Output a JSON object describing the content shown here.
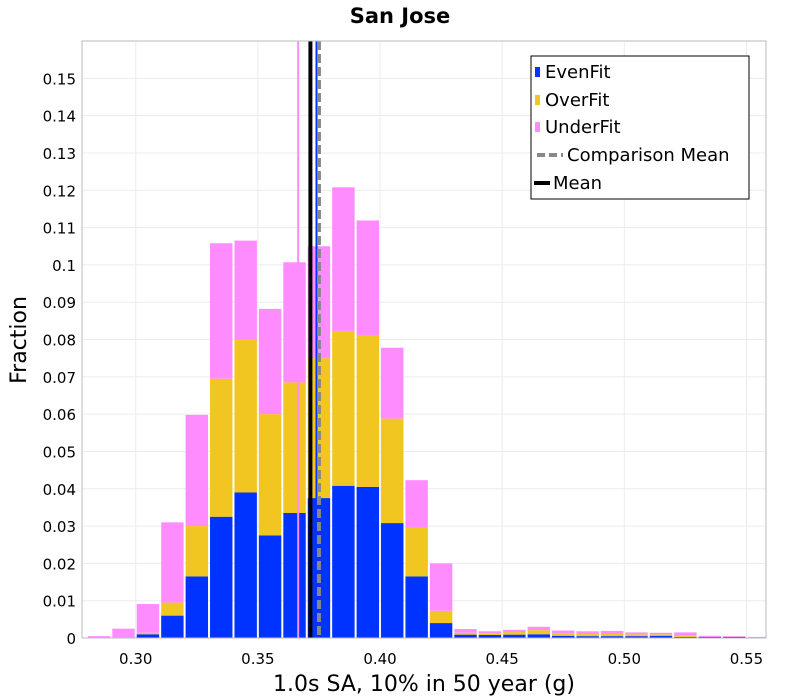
{
  "chart_data": {
    "type": "bar",
    "stacked": true,
    "title": "San Jose",
    "xlabel": "1.0s SA, 10% in 50 year (g)",
    "ylabel": "Fraction",
    "xlim": [
      0.278,
      0.558
    ],
    "ylim": [
      0,
      0.16
    ],
    "bin_width": 0.01,
    "grid": true,
    "legend_position": "top-right",
    "x_ticks": [
      0.3,
      0.35,
      0.4,
      0.45,
      0.5,
      0.55
    ],
    "x_tick_labels": [
      "0.30",
      "0.35",
      "0.40",
      "0.45",
      "0.50",
      "0.55"
    ],
    "y_ticks": [
      0,
      0.01,
      0.02,
      0.03,
      0.04,
      0.05,
      0.06,
      0.07,
      0.08,
      0.09,
      0.1,
      0.11,
      0.12,
      0.13,
      0.14,
      0.15
    ],
    "y_tick_labels": [
      "0",
      "0.01",
      "0.02",
      "0.03",
      "0.04",
      "0.05",
      "0.06",
      "0.07",
      "0.08",
      "0.09",
      "0.1",
      "0.11",
      "0.12",
      "0.13",
      "0.14",
      "0.15"
    ],
    "bin_centers": [
      0.285,
      0.295,
      0.305,
      0.315,
      0.325,
      0.335,
      0.345,
      0.355,
      0.365,
      0.375,
      0.385,
      0.395,
      0.405,
      0.415,
      0.425,
      0.435,
      0.445,
      0.455,
      0.465,
      0.475,
      0.485,
      0.495,
      0.505,
      0.515,
      0.525,
      0.535,
      0.545,
      0.555
    ],
    "series": [
      {
        "name": "EvenFit",
        "color": "#0033ff",
        "values": [
          0,
          0,
          0.001,
          0.006,
          0.0165,
          0.0325,
          0.039,
          0.0275,
          0.0335,
          0.0375,
          0.0408,
          0.0405,
          0.0308,
          0.0165,
          0.004,
          0.0009,
          0.0008,
          0.0009,
          0.001,
          0.0006,
          0.0005,
          0.0005,
          0.0005,
          0.0006,
          0.0003,
          0.0003,
          0.0003,
          0
        ]
      },
      {
        "name": "OverFit",
        "color": "#f2c620",
        "values": [
          0,
          0,
          0.0004,
          0.0035,
          0.0135,
          0.037,
          0.041,
          0.0325,
          0.035,
          0.0375,
          0.0415,
          0.0407,
          0.028,
          0.013,
          0.0033,
          0.0005,
          0.0005,
          0.0007,
          0.0011,
          0.0007,
          0.0007,
          0.0007,
          0.0005,
          0.0004,
          0.0004,
          0,
          0,
          0
        ]
      },
      {
        "name": "UnderFit",
        "color": "#ff8cff",
        "values": [
          0.0005,
          0.0025,
          0.0077,
          0.0215,
          0.0298,
          0.0363,
          0.0265,
          0.0282,
          0.0322,
          0.03,
          0.0385,
          0.0307,
          0.019,
          0.0128,
          0.0127,
          0.001,
          0.0005,
          0.0006,
          0.0009,
          0.0007,
          0.0006,
          0.0007,
          0.0005,
          0.0004,
          0.0008,
          0.0003,
          0.0002,
          0.0003
        ]
      }
    ],
    "reference_lines": [
      {
        "name": "Comparison Mean",
        "x": 0.375,
        "color": "#888888",
        "style": "dashed"
      },
      {
        "name": "Mean",
        "x": 0.3715,
        "color": "#000000",
        "style": "solid"
      }
    ],
    "extra_marks": [
      {
        "x": 0.3665,
        "color": "#ff8cff"
      },
      {
        "x": 0.374,
        "color": "#0033ff"
      }
    ]
  }
}
